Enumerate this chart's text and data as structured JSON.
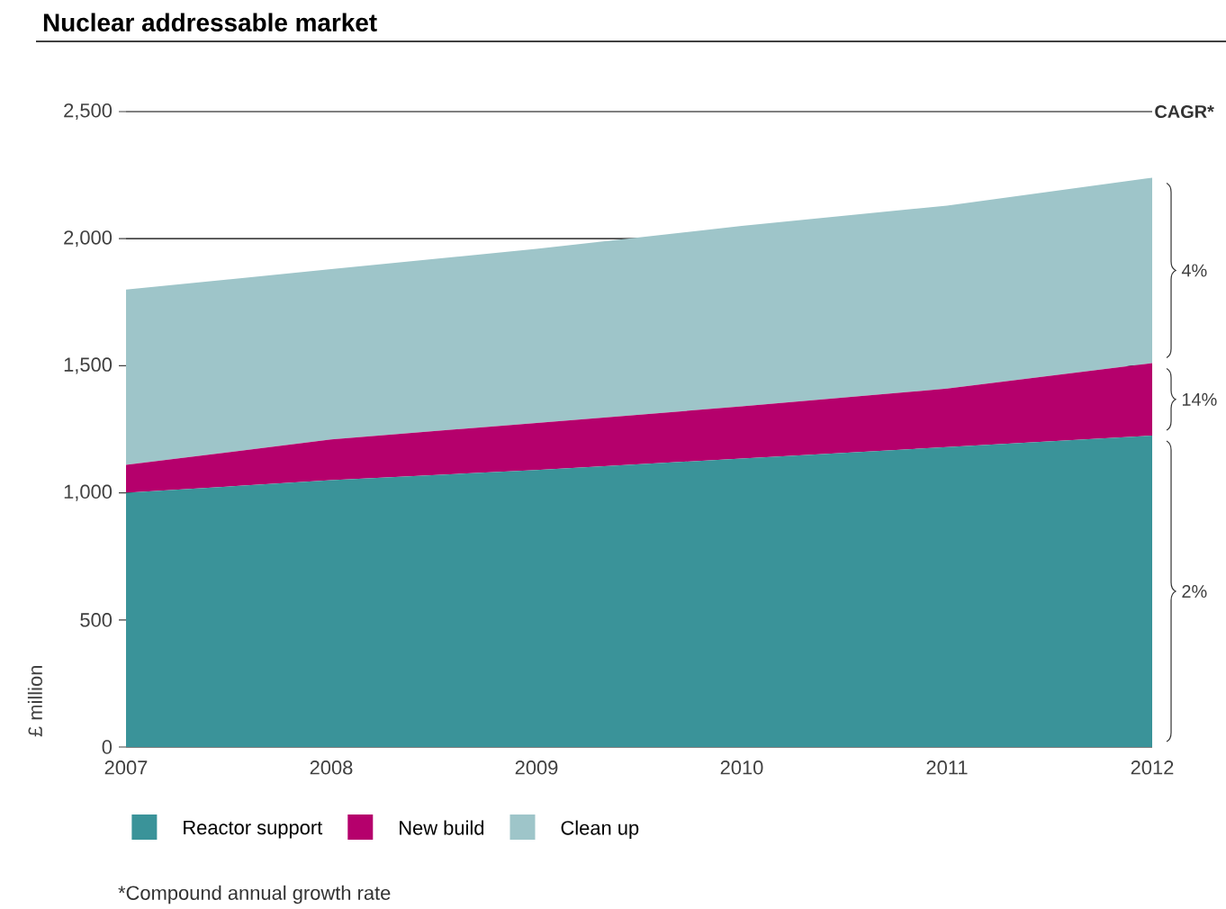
{
  "chart_data": {
    "type": "area",
    "title": "Nuclear addressable market",
    "ylabel": "£ million",
    "stacked": true,
    "grid": "y",
    "legend": "bottom",
    "categories": [
      "2007",
      "2008",
      "2009",
      "2010",
      "2011",
      "2012"
    ],
    "series": [
      {
        "name": "Reactor support",
        "color": "#3a9399",
        "values": [
          1000,
          1050,
          1090,
          1135,
          1180,
          1225
        ]
      },
      {
        "name": "New build",
        "color": "#b5006c",
        "values": [
          110,
          160,
          185,
          205,
          230,
          285
        ]
      },
      {
        "name": "Clean up",
        "color": "#9ec5c9",
        "values": [
          690,
          670,
          685,
          710,
          720,
          730
        ]
      }
    ],
    "ylim": [
      0,
      2500
    ],
    "yticks": [
      0,
      500,
      {
        "value": 1000,
        "label": "1,000"
      },
      {
        "value": 1500,
        "label": "1,500"
      },
      {
        "value": 2000,
        "label": "2,000"
      },
      {
        "value": 2500,
        "label": "2,500"
      }
    ],
    "annotations": [
      "CAGR*",
      "2%",
      "14%",
      "4%",
      "*Compound annual growth rate"
    ]
  }
}
